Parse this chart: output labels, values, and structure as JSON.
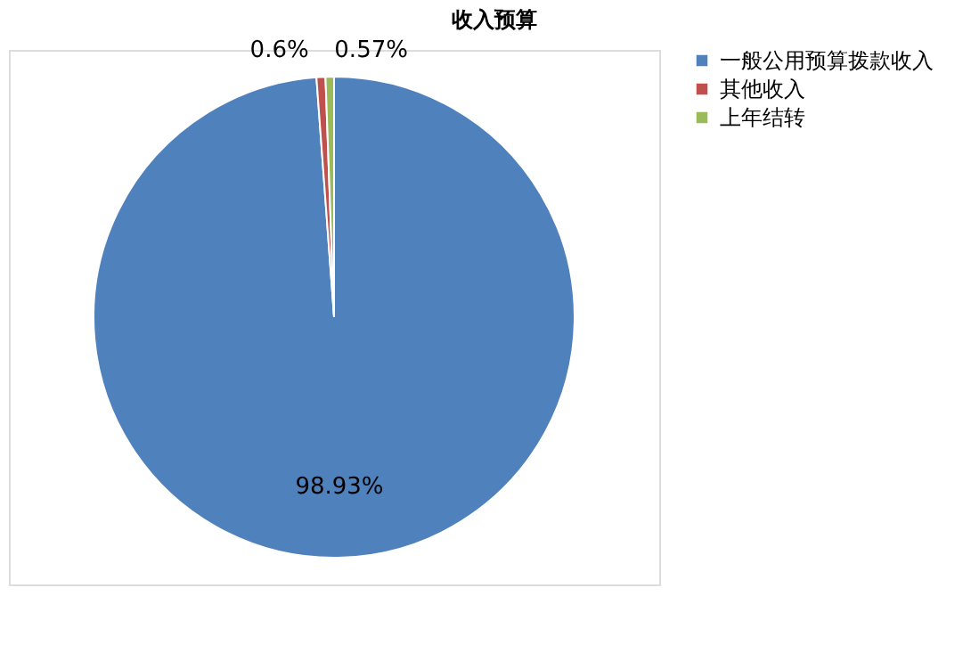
{
  "chart_data": {
    "type": "pie",
    "title": "收入预算",
    "categories": [
      "一般公用预算拨款收入",
      "其他收入",
      "上年结转"
    ],
    "values": [
      98.93,
      0.6,
      0.57
    ],
    "colors": [
      "#4f81bd",
      "#c0504d",
      "#9bbb59"
    ],
    "value_labels": [
      "98.93%",
      "0.6%",
      "0.57%"
    ],
    "legend": "right"
  }
}
